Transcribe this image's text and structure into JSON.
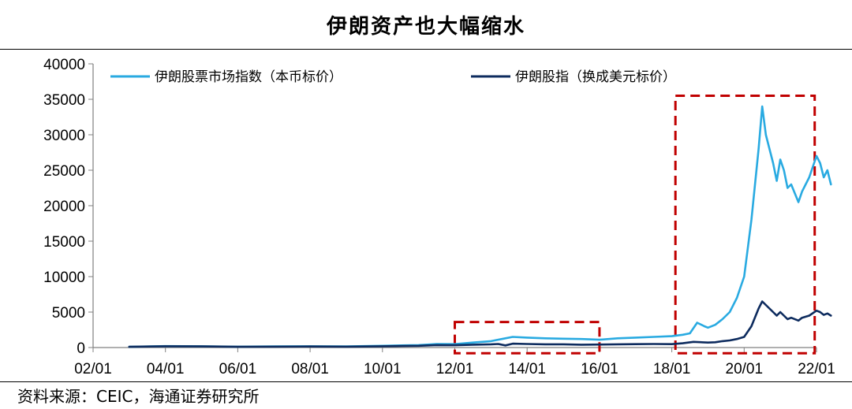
{
  "title": "伊朗资产也大幅缩水",
  "source": "资料来源：CEIC，海通证券研究所",
  "colors": {
    "index_local": "#29aae1",
    "index_usd": "#0d2b5e",
    "highlight": "#c00000",
    "axis": "#808080"
  },
  "chart_data": {
    "type": "line",
    "ylim": [
      0,
      40000
    ],
    "y_ticks": [
      "0",
      "5000",
      "10000",
      "15000",
      "20000",
      "25000",
      "30000",
      "35000",
      "40000"
    ],
    "x_ticks": [
      "02/01",
      "04/01",
      "06/01",
      "08/01",
      "10/01",
      "12/01",
      "14/01",
      "16/01",
      "18/01",
      "20/01",
      "22/01"
    ],
    "xlim": [
      2002.0,
      2022.0
    ],
    "legend_position": "top",
    "series": [
      {
        "name": "伊朗股票市场指数（本币标价）",
        "color": "#29aae1",
        "x": [
          2003.0,
          2004.0,
          2005.0,
          2006.0,
          2007.0,
          2008.0,
          2009.0,
          2010.0,
          2011.0,
          2011.5,
          2012.0,
          2012.5,
          2013.0,
          2013.3,
          2013.6,
          2014.0,
          2014.5,
          2015.0,
          2015.5,
          2016.0,
          2016.5,
          2017.0,
          2017.5,
          2018.0,
          2018.3,
          2018.5,
          2018.7,
          2018.9,
          2019.0,
          2019.2,
          2019.4,
          2019.6,
          2019.8,
          2020.0,
          2020.2,
          2020.4,
          2020.5,
          2020.6,
          2020.8,
          2020.9,
          2021.0,
          2021.1,
          2021.2,
          2021.3,
          2021.5,
          2021.6,
          2021.8,
          2022.0,
          2022.1,
          2022.2,
          2022.3,
          2022.4
        ],
        "y": [
          100,
          200,
          180,
          120,
          150,
          180,
          160,
          250,
          350,
          500,
          480,
          700,
          900,
          1200,
          1500,
          1400,
          1300,
          1250,
          1200,
          1100,
          1300,
          1400,
          1500,
          1600,
          1800,
          2000,
          3500,
          3000,
          2800,
          3200,
          4000,
          5000,
          7000,
          10000,
          18000,
          28000,
          34000,
          30000,
          26000,
          23500,
          26500,
          25000,
          22500,
          23000,
          20500,
          22000,
          24000,
          27000,
          26000,
          24000,
          25000,
          23000
        ]
      },
      {
        "name": "伊朗股指（换成美元标价）",
        "color": "#0d2b5e",
        "x": [
          2003.0,
          2004.0,
          2005.0,
          2006.0,
          2007.0,
          2008.0,
          2009.0,
          2010.0,
          2011.0,
          2011.5,
          2012.0,
          2012.5,
          2013.0,
          2013.2,
          2013.4,
          2013.6,
          2014.0,
          2014.5,
          2015.0,
          2015.5,
          2016.0,
          2016.5,
          2017.0,
          2017.5,
          2018.0,
          2018.3,
          2018.6,
          2019.0,
          2019.2,
          2019.4,
          2019.6,
          2019.8,
          2020.0,
          2020.2,
          2020.4,
          2020.5,
          2020.6,
          2020.8,
          2020.9,
          2021.0,
          2021.1,
          2021.2,
          2021.3,
          2021.5,
          2021.6,
          2021.8,
          2022.0,
          2022.1,
          2022.2,
          2022.3,
          2022.4
        ],
        "y": [
          100,
          180,
          150,
          100,
          120,
          140,
          120,
          180,
          250,
          350,
          320,
          400,
          450,
          500,
          300,
          550,
          500,
          450,
          450,
          400,
          420,
          450,
          480,
          500,
          480,
          600,
          800,
          700,
          750,
          900,
          1000,
          1200,
          1500,
          3000,
          5500,
          6500,
          6000,
          5000,
          4500,
          5000,
          4500,
          4000,
          4200,
          3800,
          4200,
          4500,
          5200,
          5000,
          4600,
          4800,
          4500
        ]
      }
    ]
  }
}
